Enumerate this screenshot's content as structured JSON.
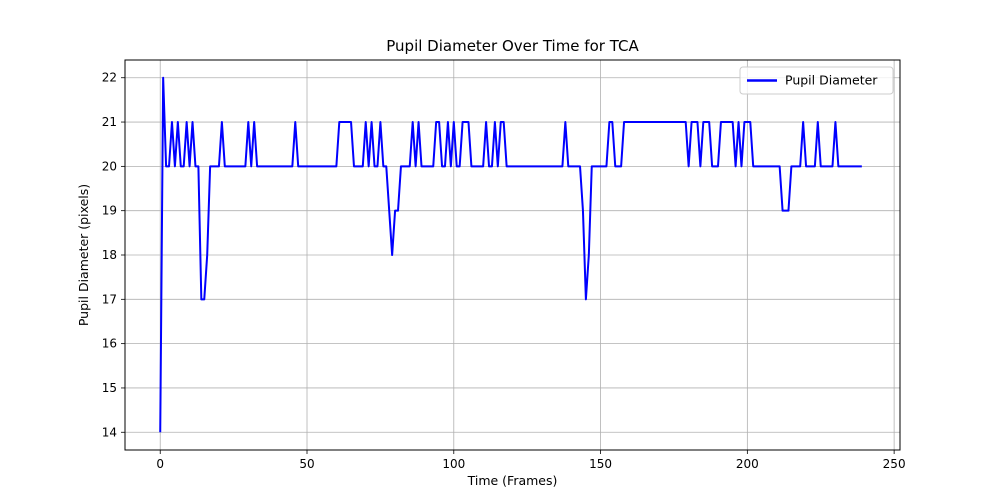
{
  "chart_data": {
    "type": "line",
    "title": "Pupil Diameter Over Time for TCA",
    "xlabel": "Time (Frames)",
    "ylabel": "Pupil Diameter (pixels)",
    "xlim": [
      -12,
      252
    ],
    "ylim": [
      13.6,
      22.4
    ],
    "xticks": [
      0,
      50,
      100,
      150,
      200,
      250
    ],
    "yticks": [
      14,
      15,
      16,
      17,
      18,
      19,
      20,
      21,
      22
    ],
    "grid": true,
    "legend_position": "upper right",
    "series": [
      {
        "name": "Pupil Diameter",
        "color": "#0000ff",
        "x": [
          0,
          1,
          2,
          3,
          4,
          5,
          6,
          7,
          8,
          9,
          10,
          11,
          12,
          13,
          14,
          15,
          16,
          17,
          18,
          19,
          20,
          21,
          22,
          23,
          24,
          25,
          26,
          27,
          28,
          29,
          30,
          31,
          32,
          33,
          34,
          35,
          36,
          37,
          38,
          39,
          40,
          41,
          42,
          43,
          44,
          45,
          46,
          47,
          48,
          49,
          50,
          51,
          52,
          53,
          54,
          55,
          56,
          57,
          58,
          59,
          60,
          61,
          62,
          63,
          64,
          65,
          66,
          67,
          68,
          69,
          70,
          71,
          72,
          73,
          74,
          75,
          76,
          77,
          78,
          79,
          80,
          81,
          82,
          83,
          84,
          85,
          86,
          87,
          88,
          89,
          90,
          91,
          92,
          93,
          94,
          95,
          96,
          97,
          98,
          99,
          100,
          101,
          102,
          103,
          104,
          105,
          106,
          107,
          108,
          109,
          110,
          111,
          112,
          113,
          114,
          115,
          116,
          117,
          118,
          119,
          120,
          121,
          122,
          123,
          124,
          125,
          126,
          127,
          128,
          129,
          130,
          131,
          132,
          133,
          134,
          135,
          136,
          137,
          138,
          139,
          140,
          141,
          142,
          143,
          144,
          145,
          146,
          147,
          148,
          149,
          150,
          151,
          152,
          153,
          154,
          155,
          156,
          157,
          158,
          159,
          160,
          161,
          162,
          163,
          164,
          165,
          166,
          167,
          168,
          169,
          170,
          171,
          172,
          173,
          174,
          175,
          176,
          177,
          178,
          179,
          180,
          181,
          182,
          183,
          184,
          185,
          186,
          187,
          188,
          189,
          190,
          191,
          192,
          193,
          194,
          195,
          196,
          197,
          198,
          199,
          200,
          201,
          202,
          203,
          204,
          205,
          206,
          207,
          208,
          209,
          210,
          211,
          212,
          213,
          214,
          215,
          216,
          217,
          218,
          219,
          220,
          221,
          222,
          223,
          224,
          225,
          226,
          227,
          228,
          229,
          230,
          231,
          232,
          233,
          234,
          235,
          236,
          237,
          238,
          239
        ],
        "y": [
          14,
          22,
          20,
          20,
          21,
          20,
          21,
          20,
          20,
          21,
          20,
          21,
          20,
          20,
          17,
          17,
          18,
          20,
          20,
          20,
          20,
          21,
          20,
          20,
          20,
          20,
          20,
          20,
          20,
          20,
          21,
          20,
          21,
          20,
          20,
          20,
          20,
          20,
          20,
          20,
          20,
          20,
          20,
          20,
          20,
          20,
          21,
          20,
          20,
          20,
          20,
          20,
          20,
          20,
          20,
          20,
          20,
          20,
          20,
          20,
          20,
          21,
          21,
          21,
          21,
          21,
          20,
          20,
          20,
          20,
          21,
          20,
          21,
          20,
          20,
          21,
          20,
          20,
          19,
          18,
          19,
          19,
          20,
          20,
          20,
          20,
          21,
          20,
          21,
          20,
          20,
          20,
          20,
          20,
          21,
          21,
          20,
          20,
          21,
          20,
          21,
          20,
          20,
          21,
          21,
          21,
          20,
          20,
          20,
          20,
          20,
          21,
          20,
          20,
          21,
          20,
          21,
          21,
          20,
          20,
          20,
          20,
          20,
          20,
          20,
          20,
          20,
          20,
          20,
          20,
          20,
          20,
          20,
          20,
          20,
          20,
          20,
          20,
          21,
          20,
          20,
          20,
          20,
          20,
          19,
          17,
          18,
          20,
          20,
          20,
          20,
          20,
          20,
          21,
          21,
          20,
          20,
          20,
          21,
          21,
          21,
          21,
          21,
          21,
          21,
          21,
          21,
          21,
          21,
          21,
          21,
          21,
          21,
          21,
          21,
          21,
          21,
          21,
          21,
          21,
          20,
          21,
          21,
          21,
          20,
          21,
          21,
          21,
          20,
          20,
          20,
          21,
          21,
          21,
          21,
          21,
          20,
          21,
          20,
          21,
          21,
          21,
          20,
          20,
          20,
          20,
          20,
          20,
          20,
          20,
          20,
          20,
          19,
          19,
          19,
          20,
          20,
          20,
          20,
          21,
          20,
          20,
          20,
          20,
          21,
          20,
          20,
          20,
          20,
          20,
          21,
          20,
          20,
          20,
          20,
          20,
          20,
          20,
          20,
          20
        ]
      }
    ]
  }
}
